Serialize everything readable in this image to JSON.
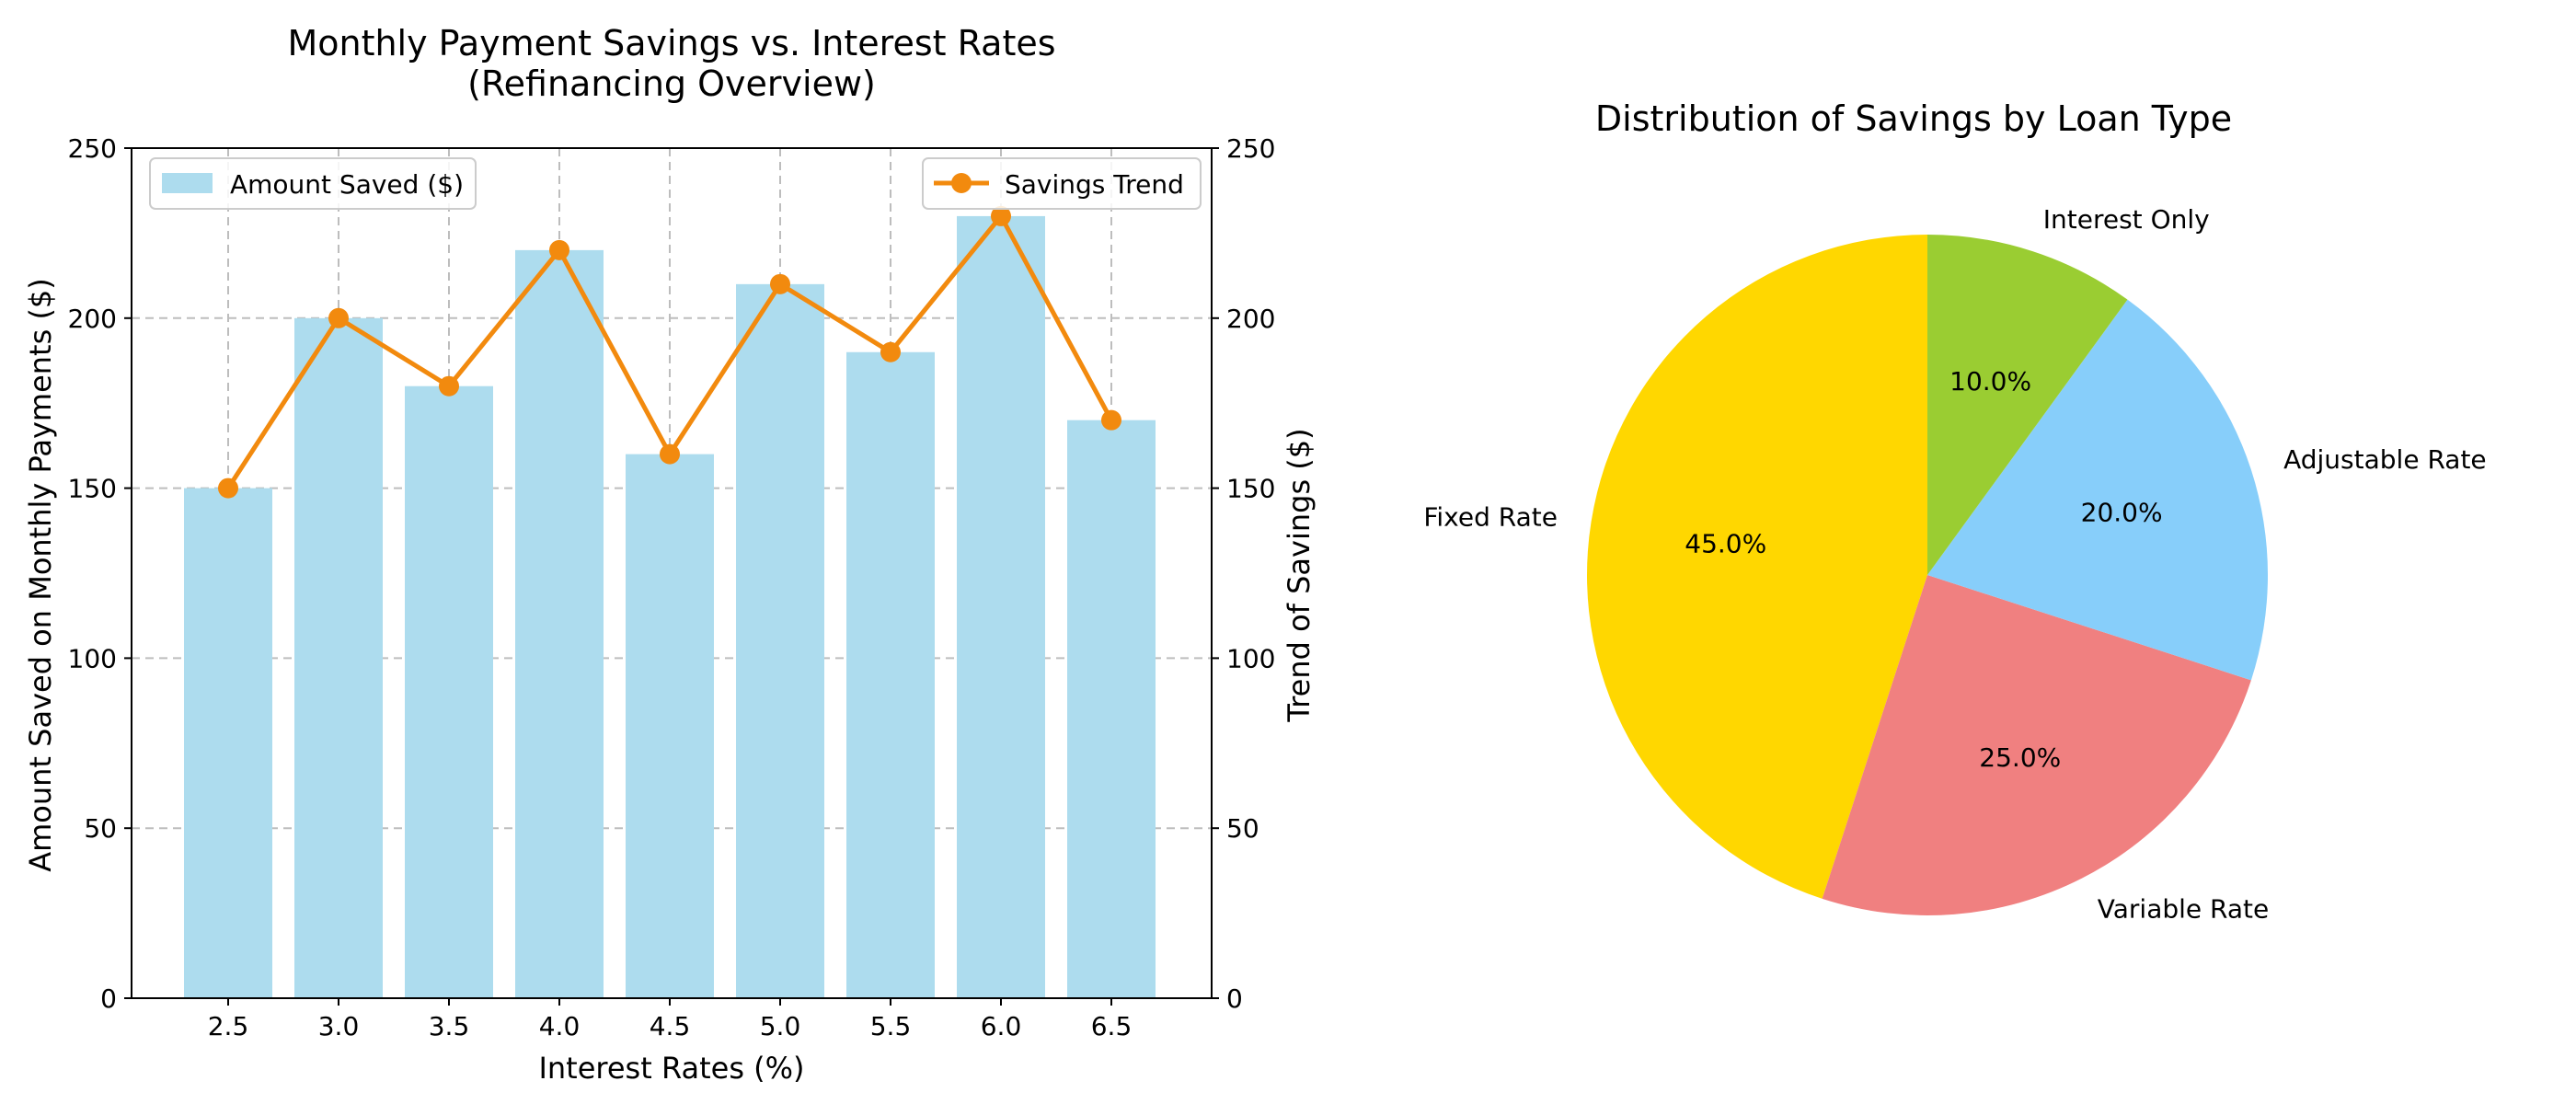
{
  "colors": {
    "bar": "#ADDCEE",
    "trend": "#F28A0E",
    "grid": "#BDBDBD",
    "pie": [
      "#FFD700",
      "#F08080",
      "#87CEFA",
      "#9ACD32"
    ]
  },
  "chart_data": [
    {
      "type": "bar",
      "title": "Monthly Payment Savings vs. Interest Rates\n(Refinancing Overview)",
      "xlabel": "Interest Rates (%)",
      "ylabel": "Amount Saved on Monthly Payments ($)",
      "y2label": "Trend of Savings ($)",
      "categories": [
        "2.5",
        "3.0",
        "3.5",
        "4.0",
        "4.5",
        "5.0",
        "5.5",
        "6.0",
        "6.5"
      ],
      "ylim": [
        0,
        250
      ],
      "y2lim": [
        0,
        250
      ],
      "yticks": [
        "0",
        "50",
        "100",
        "150",
        "200",
        "250"
      ],
      "grid": true,
      "series": [
        {
          "name": "Amount Saved ($)",
          "type": "bar",
          "axis": "left",
          "values": [
            150,
            200,
            180,
            220,
            160,
            210,
            190,
            230,
            170
          ]
        },
        {
          "name": "Savings Trend",
          "type": "line",
          "axis": "right",
          "values": [
            150,
            200,
            180,
            220,
            160,
            210,
            190,
            230,
            170
          ]
        }
      ],
      "legends": {
        "bar": "top-left",
        "line": "top-right"
      }
    },
    {
      "type": "pie",
      "title": "Distribution of Savings by Loan Type",
      "labels": [
        "Fixed Rate",
        "Variable Rate",
        "Adjustable Rate",
        "Interest Only"
      ],
      "values": [
        45,
        25,
        20,
        10
      ],
      "percent_labels": [
        "45.0%",
        "25.0%",
        "20.0%",
        "10.0%"
      ],
      "start_angle": 90,
      "direction": "counterclockwise"
    }
  ]
}
